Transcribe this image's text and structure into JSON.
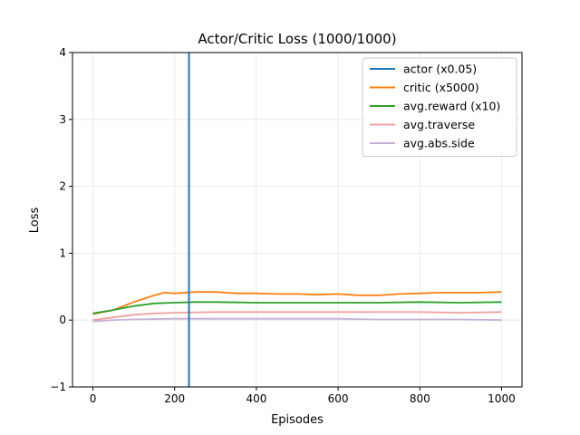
{
  "chart_data": {
    "type": "line",
    "title": "Actor/Critic Loss (1000/1000)",
    "xlabel": "Episodes",
    "ylabel": "Loss",
    "xlim": [
      -50,
      1050
    ],
    "ylim": [
      -1,
      4
    ],
    "xticks": [
      0,
      200,
      400,
      600,
      800,
      1000
    ],
    "yticks": [
      -1,
      0,
      1,
      2,
      3,
      4
    ],
    "grid": true,
    "legend_position": "top-right",
    "vline": {
      "series": "actor (x0.05)",
      "x": 235
    },
    "series": [
      {
        "name": "actor (x0.05)",
        "color": "#1f77b4",
        "style": "vertical-line",
        "x": [
          235,
          235
        ],
        "y": [
          -1,
          4
        ]
      },
      {
        "name": "critic (x5000)",
        "color": "#ff7f0e",
        "x": [
          0,
          50,
          100,
          150,
          175,
          200,
          250,
          300,
          350,
          400,
          450,
          500,
          550,
          600,
          650,
          700,
          750,
          800,
          850,
          900,
          950,
          1000
        ],
        "y": [
          0.09,
          0.15,
          0.27,
          0.37,
          0.41,
          0.4,
          0.42,
          0.42,
          0.4,
          0.4,
          0.39,
          0.39,
          0.38,
          0.39,
          0.37,
          0.37,
          0.39,
          0.4,
          0.41,
          0.41,
          0.41,
          0.42
        ]
      },
      {
        "name": "avg.reward (x10)",
        "color": "#2ca02c",
        "x": [
          0,
          50,
          100,
          150,
          200,
          250,
          300,
          400,
          500,
          600,
          700,
          800,
          900,
          1000
        ],
        "y": [
          0.1,
          0.15,
          0.21,
          0.25,
          0.26,
          0.27,
          0.27,
          0.26,
          0.26,
          0.26,
          0.26,
          0.27,
          0.26,
          0.27
        ]
      },
      {
        "name": "avg.traverse",
        "color": "#f0a1a1",
        "x": [
          0,
          50,
          100,
          150,
          200,
          300,
          400,
          500,
          600,
          700,
          800,
          900,
          1000
        ],
        "y": [
          0.0,
          0.04,
          0.08,
          0.1,
          0.11,
          0.12,
          0.12,
          0.12,
          0.12,
          0.12,
          0.12,
          0.11,
          0.12
        ]
      },
      {
        "name": "avg.abs.side",
        "color": "#c5b0d5",
        "x": [
          0,
          50,
          100,
          200,
          300,
          400,
          500,
          600,
          700,
          800,
          900,
          1000
        ],
        "y": [
          -0.02,
          0.0,
          0.01,
          0.02,
          0.02,
          0.02,
          0.02,
          0.02,
          0.01,
          0.01,
          0.01,
          0.0
        ]
      }
    ]
  }
}
